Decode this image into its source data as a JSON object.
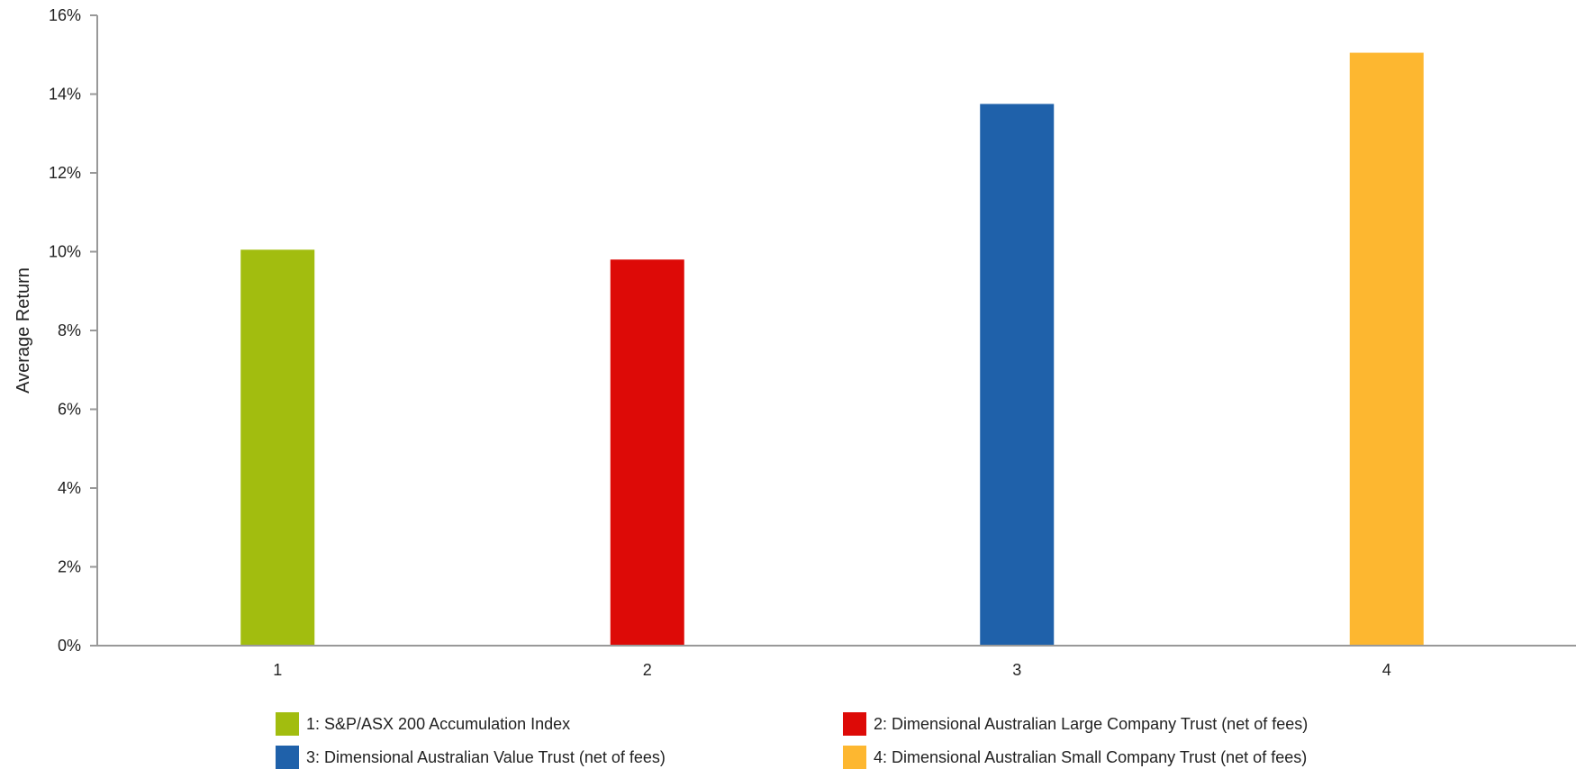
{
  "chart_data": {
    "type": "bar",
    "categories": [
      "1",
      "2",
      "3",
      "4"
    ],
    "values": [
      10.05,
      9.8,
      13.75,
      15.05
    ],
    "colors": [
      "#A2BD0F",
      "#DD0A07",
      "#1F61AA",
      "#FDB730"
    ],
    "title": "",
    "xlabel": "",
    "ylabel": "Average Return",
    "ylim": [
      0,
      16
    ],
    "yticks": [
      0,
      2,
      4,
      6,
      8,
      10,
      12,
      14,
      16
    ],
    "ytick_labels": [
      "0%",
      "2%",
      "4%",
      "6%",
      "8%",
      "10%",
      "12%",
      "14%",
      "16%"
    ],
    "grid": false,
    "legend_position": "bottom",
    "legend": [
      "1: S&P/ASX 200 Accumulation Index",
      "2: Dimensional Australian Large Company Trust (net of fees)",
      "3: Dimensional Australian Value Trust (net of fees)",
      "4: Dimensional Australian Small Company Trust (net of fees)"
    ]
  }
}
